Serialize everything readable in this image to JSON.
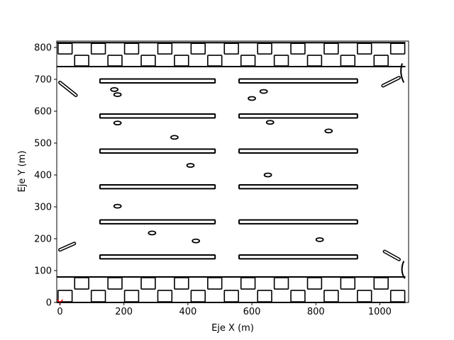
{
  "chart_data": {
    "type": "scatter",
    "title": "",
    "xlabel": "Eje X (m)",
    "ylabel": "Eje Y (m)",
    "xlim": [
      -10,
      1090
    ],
    "ylim": [
      0,
      820
    ],
    "xticks": [
      0,
      200,
      400,
      600,
      800,
      1000
    ],
    "yticks": [
      0,
      100,
      200,
      300,
      400,
      500,
      600,
      700,
      800
    ],
    "grid": false,
    "legend": "none",
    "colors": {
      "map": "#000000",
      "origin_marker": "#ff0000"
    },
    "origin_marker": {
      "x": 0,
      "y": 0,
      "shape": "tri-down"
    },
    "map_content": {
      "description_free": true,
      "top_checker_band_y": [
        740,
        815
      ],
      "bottom_checker_band_y": [
        0,
        80
      ],
      "shelf_rows_y": [
        695,
        585,
        475,
        363,
        253,
        143
      ],
      "shelf_left_x": [
        125,
        485
      ],
      "shelf_right_x": [
        560,
        930
      ],
      "blobs": [
        {
          "x": 180,
          "y": 652
        },
        {
          "x": 170,
          "y": 668
        },
        {
          "x": 180,
          "y": 563
        },
        {
          "x": 358,
          "y": 518
        },
        {
          "x": 408,
          "y": 430
        },
        {
          "x": 180,
          "y": 302
        },
        {
          "x": 288,
          "y": 218
        },
        {
          "x": 425,
          "y": 193
        },
        {
          "x": 600,
          "y": 640
        },
        {
          "x": 637,
          "y": 662
        },
        {
          "x": 657,
          "y": 565
        },
        {
          "x": 840,
          "y": 538
        },
        {
          "x": 650,
          "y": 400
        },
        {
          "x": 812,
          "y": 197
        }
      ]
    }
  }
}
